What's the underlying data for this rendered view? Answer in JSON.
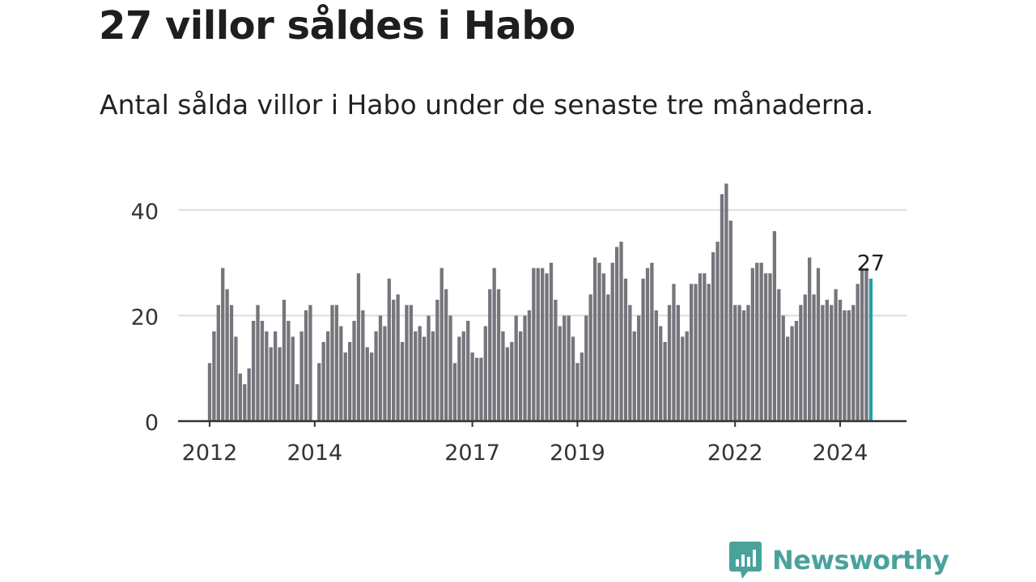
{
  "header": {
    "title": "27 villor såldes i Habo",
    "subtitle": "Antal sålda villor i Habo under de senaste tre månaderna."
  },
  "brand": {
    "name": "Newsworthy",
    "logo_icon": "bar-chart-speech-bubble-icon"
  },
  "colors": {
    "bar": "#76757c",
    "highlight": "#1fa2a2",
    "grid": "#dcdcdc",
    "axis": "#333333",
    "brand": "#4aa29b"
  },
  "chart_data": {
    "type": "bar",
    "title": "27 villor såldes i Habo",
    "subtitle": "Antal sålda villor i Habo under de senaste tre månaderna.",
    "xlabel": "",
    "ylabel": "",
    "ylim": [
      0,
      48
    ],
    "yticks": [
      0,
      20,
      40
    ],
    "xticks": [
      "2012",
      "2014",
      "2017",
      "2019",
      "2022",
      "2024"
    ],
    "x_start": "2012-01",
    "x_end": "2024-06",
    "grid": true,
    "legend": "none",
    "highlight_label": "27",
    "values": [
      11,
      17,
      22,
      29,
      25,
      22,
      16,
      9,
      7,
      10,
      19,
      22,
      19,
      17,
      14,
      17,
      14,
      23,
      19,
      16,
      7,
      17,
      21,
      22,
      0,
      11,
      15,
      17,
      22,
      22,
      18,
      13,
      15,
      19,
      28,
      21,
      14,
      13,
      17,
      20,
      18,
      27,
      23,
      24,
      15,
      22,
      22,
      17,
      18,
      16,
      20,
      17,
      23,
      29,
      25,
      20,
      11,
      16,
      17,
      19,
      13,
      12,
      12,
      18,
      25,
      29,
      25,
      17,
      14,
      15,
      20,
      17,
      20,
      21,
      29,
      29,
      29,
      28,
      30,
      23,
      18,
      20,
      20,
      16,
      11,
      13,
      20,
      24,
      31,
      30,
      28,
      24,
      30,
      33,
      34,
      27,
      22,
      17,
      20,
      27,
      29,
      30,
      21,
      18,
      15,
      22,
      26,
      22,
      16,
      17,
      26,
      26,
      28,
      28,
      26,
      32,
      34,
      43,
      45,
      38,
      22,
      22,
      21,
      22,
      29,
      30,
      30,
      28,
      28,
      36,
      25,
      20,
      16,
      18,
      19,
      22,
      24,
      31,
      24,
      29,
      22,
      23,
      22,
      25,
      23,
      21,
      21,
      22,
      26,
      29,
      29,
      27
    ]
  }
}
